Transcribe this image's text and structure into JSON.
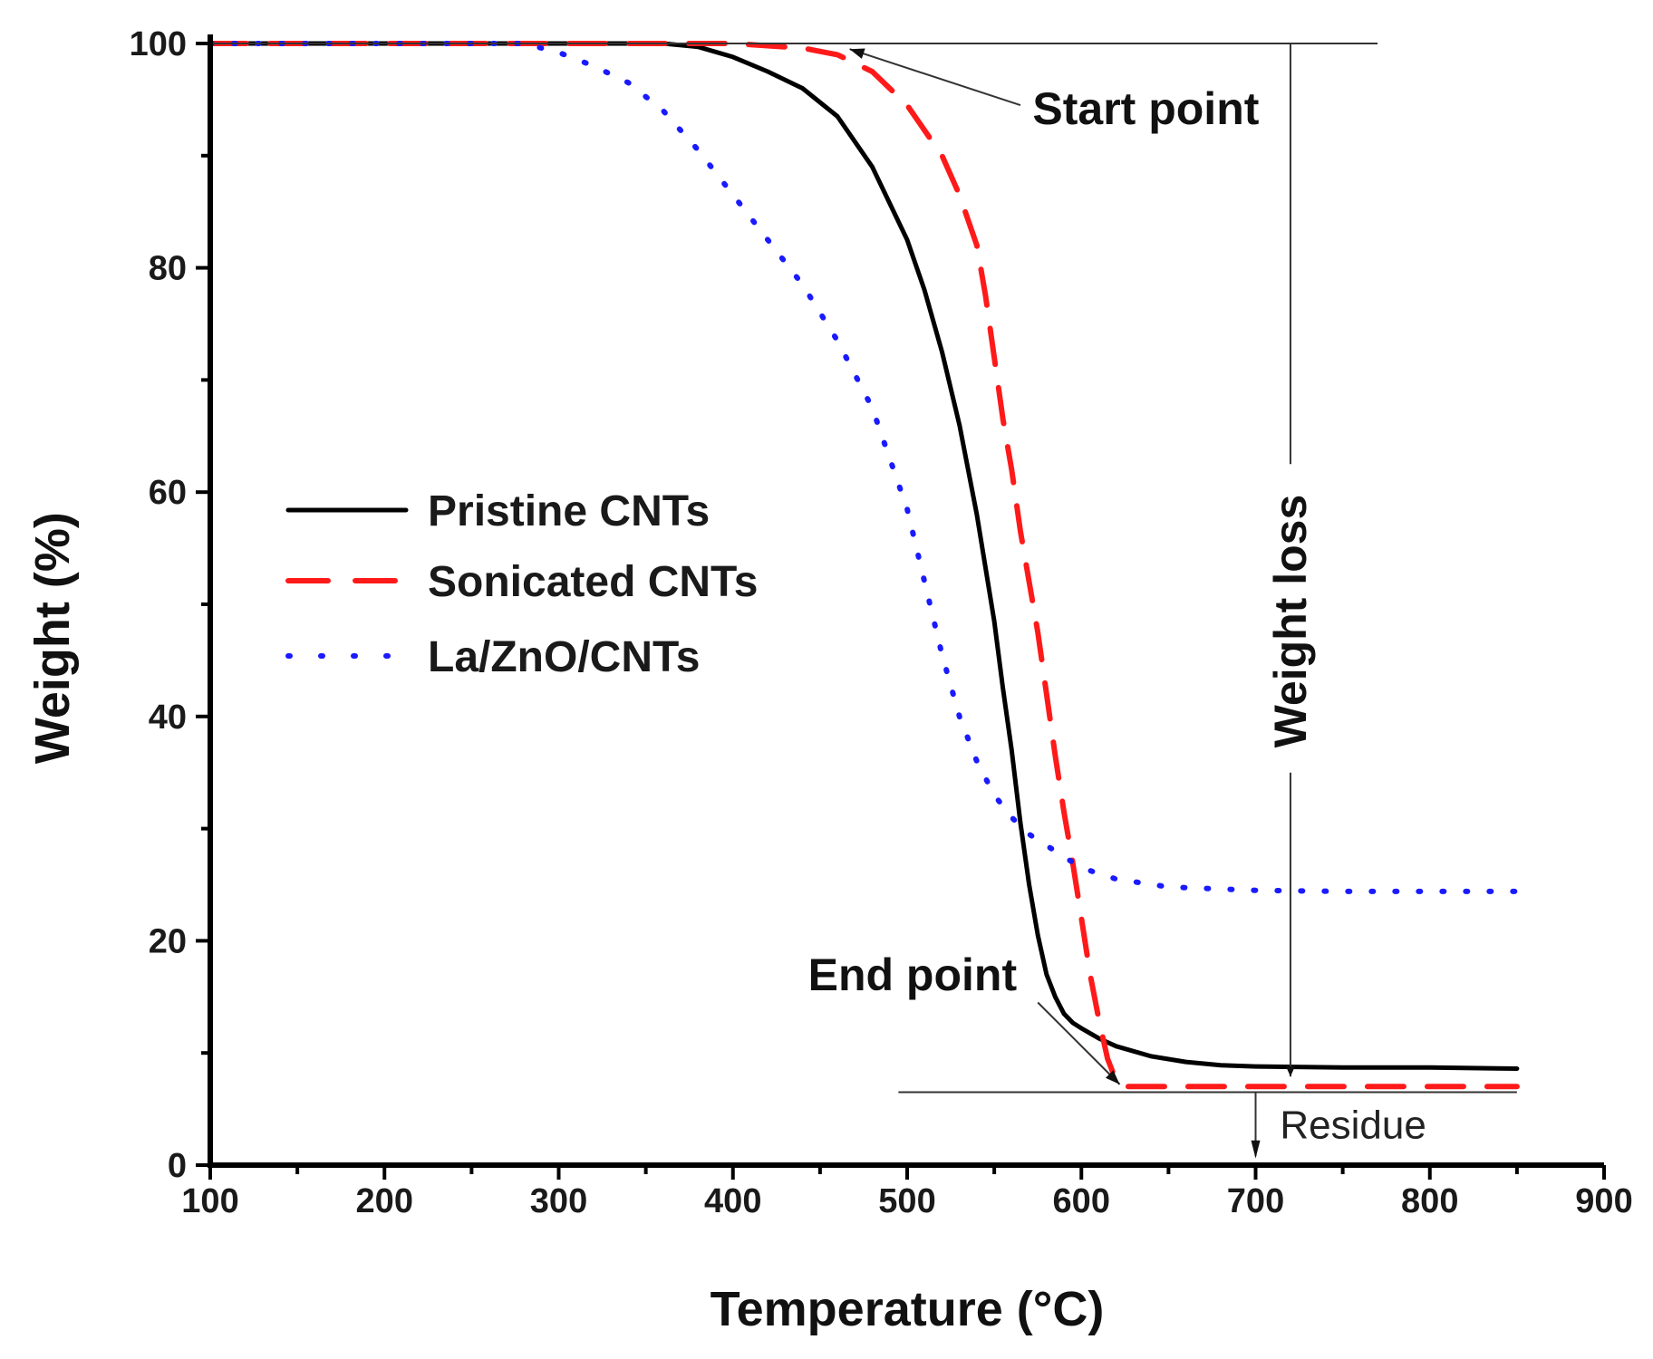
{
  "chart_data": {
    "type": "line",
    "xlabel": "Temperature (°C)",
    "ylabel": "Weight (%)",
    "xlim": [
      100,
      900
    ],
    "ylim": [
      0,
      100
    ],
    "xticks": [
      100,
      200,
      300,
      400,
      500,
      600,
      700,
      800,
      900
    ],
    "yticks": [
      0,
      20,
      40,
      60,
      80,
      100
    ],
    "grid": false,
    "legend_position": "center-left",
    "series": [
      {
        "name": "Pristine CNTs",
        "color": "#000000",
        "style": "solid",
        "x": [
          100,
          300,
          360,
          380,
          400,
          420,
          440,
          460,
          480,
          500,
          510,
          520,
          530,
          540,
          550,
          555,
          560,
          565,
          570,
          575,
          580,
          585,
          590,
          595,
          600,
          610,
          620,
          640,
          660,
          680,
          700,
          750,
          800,
          850
        ],
        "y": [
          100,
          100,
          100,
          99.7,
          98.8,
          97.5,
          96,
          93.5,
          89,
          82.5,
          78,
          72.5,
          66,
          58,
          48.5,
          42.5,
          37,
          30.5,
          25,
          20.5,
          17,
          15,
          13.5,
          12.7,
          12.2,
          11.3,
          10.6,
          9.7,
          9.2,
          8.9,
          8.8,
          8.7,
          8.7,
          8.6
        ]
      },
      {
        "name": "Sonicated CNTs",
        "color": "#ff1a1a",
        "style": "dashed",
        "x": [
          100,
          400,
          440,
          460,
          480,
          500,
          520,
          530,
          540,
          545,
          550,
          555,
          560,
          565,
          570,
          575,
          580,
          585,
          590,
          595,
          600,
          605,
          610,
          615,
          620,
          625,
          640,
          700,
          800,
          850
        ],
        "y": [
          100,
          100,
          99.6,
          99,
          97.5,
          94.5,
          90,
          86.5,
          82,
          77.5,
          72,
          66.5,
          62,
          56.5,
          52,
          47.5,
          42,
          36.5,
          31.5,
          27,
          22,
          17,
          13,
          9.5,
          7.5,
          7,
          7,
          7,
          7,
          7
        ]
      },
      {
        "name": "La/ZnO/CNTs",
        "color": "#1a1aff",
        "style": "dotted",
        "x": [
          100,
          280,
          300,
          320,
          340,
          360,
          380,
          400,
          420,
          440,
          460,
          480,
          500,
          510,
          520,
          530,
          540,
          550,
          560,
          570,
          580,
          600,
          620,
          650,
          700,
          750,
          800,
          850
        ],
        "y": [
          100,
          100,
          99.2,
          98,
          96.5,
          94,
          90.5,
          86.5,
          82.5,
          78.5,
          73.5,
          67.5,
          58.5,
          52,
          45.5,
          40,
          36,
          33,
          31,
          29.5,
          28.5,
          26.5,
          25.5,
          24.8,
          24.5,
          24.4,
          24.4,
          24.4
        ]
      }
    ],
    "annotations": {
      "start_point": "Start point",
      "end_point": "End point",
      "weight_loss": "Weight loss",
      "residue": "Residue",
      "start_level": 100,
      "end_level": 6.5,
      "marker_temperature": 720,
      "residue_temperature": 700
    }
  }
}
